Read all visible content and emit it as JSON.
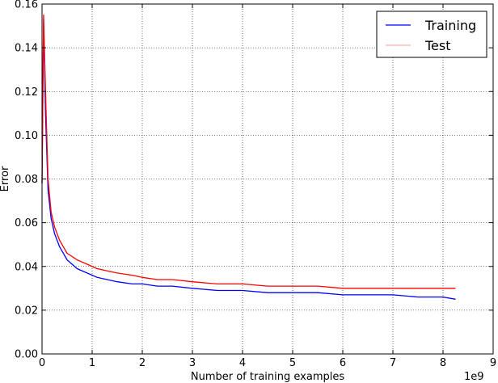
{
  "chart_data": {
    "type": "line",
    "xlabel": "Number of training examples",
    "ylabel": "Error",
    "x_offset_label": "1e9",
    "xlim": [
      0,
      9
    ],
    "ylim": [
      0,
      0.16
    ],
    "xticks": [
      "0",
      "1",
      "2",
      "3",
      "4",
      "5",
      "6",
      "7",
      "8",
      "9"
    ],
    "yticks": [
      "0.00",
      "0.02",
      "0.04",
      "0.06",
      "0.08",
      "0.10",
      "0.12",
      "0.14",
      "0.16"
    ],
    "legend_position": "top-right",
    "grid": true,
    "series": [
      {
        "name": "Training",
        "color": "#0000ff",
        "x": [
          0,
          0.03,
          0.07,
          0.12,
          0.18,
          0.25,
          0.35,
          0.5,
          0.7,
          0.9,
          1.1,
          1.3,
          1.5,
          1.8,
          2.0,
          2.3,
          2.6,
          3.0,
          3.5,
          4.0,
          4.5,
          5.0,
          5.5,
          6.0,
          6.5,
          7.0,
          7.5,
          8.0,
          8.25
        ],
        "y": [
          0.078,
          0.153,
          0.11,
          0.075,
          0.062,
          0.055,
          0.049,
          0.043,
          0.039,
          0.037,
          0.035,
          0.034,
          0.033,
          0.032,
          0.032,
          0.031,
          0.031,
          0.03,
          0.029,
          0.029,
          0.028,
          0.028,
          0.028,
          0.027,
          0.027,
          0.027,
          0.026,
          0.026,
          0.025
        ]
      },
      {
        "name": "Test",
        "color": "#ff0000",
        "x": [
          0,
          0.03,
          0.07,
          0.12,
          0.18,
          0.25,
          0.35,
          0.5,
          0.7,
          0.9,
          1.1,
          1.3,
          1.5,
          1.8,
          2.0,
          2.3,
          2.6,
          3.0,
          3.5,
          4.0,
          4.5,
          5.0,
          5.5,
          6.0,
          6.5,
          7.0,
          7.5,
          8.0,
          8.25
        ],
        "y": [
          0.078,
          0.155,
          0.12,
          0.08,
          0.065,
          0.058,
          0.052,
          0.046,
          0.043,
          0.041,
          0.039,
          0.038,
          0.037,
          0.036,
          0.035,
          0.034,
          0.034,
          0.033,
          0.032,
          0.032,
          0.031,
          0.031,
          0.031,
          0.03,
          0.03,
          0.03,
          0.03,
          0.03,
          0.03
        ]
      }
    ]
  }
}
